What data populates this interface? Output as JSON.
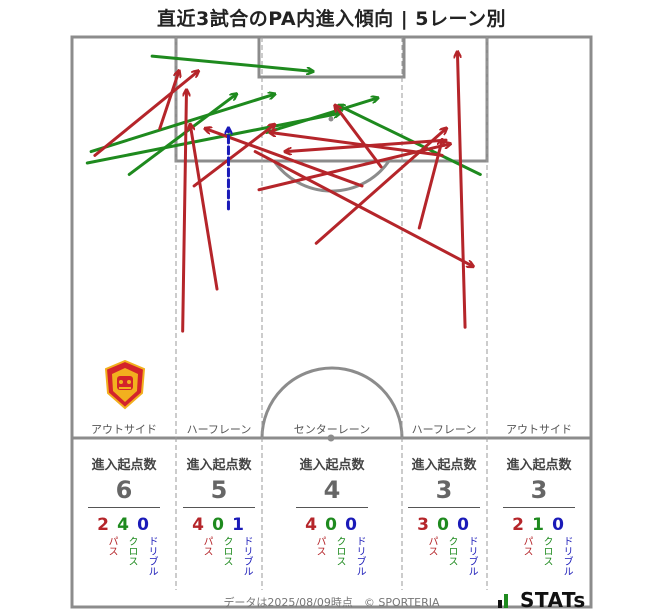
{
  "title": "直近3試合のPA内進入傾向 | 5レーン別",
  "lanes": [
    {
      "label": "アウトサイド",
      "header": "進入起点数",
      "total": "6",
      "pass": "2",
      "cross": "4",
      "dribble": "0"
    },
    {
      "label": "ハーフレーン",
      "header": "進入起点数",
      "total": "5",
      "pass": "4",
      "cross": "0",
      "dribble": "1"
    },
    {
      "label": "センターレーン",
      "header": "進入起点数",
      "total": "4",
      "pass": "4",
      "cross": "0",
      "dribble": "0"
    },
    {
      "label": "ハーフレーン",
      "header": "進入起点数",
      "total": "3",
      "pass": "3",
      "cross": "0",
      "dribble": "0"
    },
    {
      "label": "アウトサイド",
      "header": "進入起点数",
      "total": "3",
      "pass": "2",
      "cross": "1",
      "dribble": "0"
    }
  ],
  "legend": {
    "pass": "パス",
    "cross": "クロス",
    "dribble": "ドリブル"
  },
  "colors": {
    "pass": "#b5252a",
    "cross": "#1e8a1e",
    "dribble": "#1a1ab8",
    "pitch_line": "#8c8c8c"
  },
  "footer": "データは2025/08/09時点　© SPORTERIA",
  "brand": "STATs",
  "logo_icon": "club-crest-icon",
  "chart_data": {
    "type": "pitch-arrows",
    "note_units": "pitch coordinates: x 0-68 across width (left to right), y 0-52.5 from goal line downward",
    "arrows": [
      {
        "kind": "cross",
        "from": [
          10.5,
          2.5
        ],
        "to": [
          31.5,
          4.5
        ]
      },
      {
        "kind": "cross",
        "from": [
          2.5,
          15.0
        ],
        "to": [
          26.5,
          7.5
        ]
      },
      {
        "kind": "cross",
        "from": [
          2.0,
          16.5
        ],
        "to": [
          35.0,
          10.0
        ]
      },
      {
        "kind": "cross",
        "from": [
          7.5,
          18.0
        ],
        "to": [
          21.5,
          7.5
        ]
      },
      {
        "kind": "cross",
        "from": [
          53.5,
          18.0
        ],
        "to": [
          35.0,
          9.0
        ]
      },
      {
        "kind": "cross",
        "from": [
          25.5,
          12.5
        ],
        "to": [
          40.0,
          8.0
        ]
      },
      {
        "kind": "pass",
        "from": [
          3.0,
          15.5
        ],
        "to": [
          16.5,
          4.5
        ]
      },
      {
        "kind": "pass",
        "from": [
          11.5,
          12.0
        ],
        "to": [
          14.0,
          4.5
        ]
      },
      {
        "kind": "pass",
        "from": [
          14.5,
          38.5
        ],
        "to": [
          15.0,
          7.0
        ]
      },
      {
        "kind": "pass",
        "from": [
          19.0,
          33.0
        ],
        "to": [
          15.5,
          11.5
        ]
      },
      {
        "kind": "pass",
        "from": [
          16.0,
          19.5
        ],
        "to": [
          26.5,
          11.5
        ]
      },
      {
        "kind": "pass",
        "from": [
          48.5,
          15.5
        ],
        "to": [
          26.0,
          12.5
        ]
      },
      {
        "kind": "pass",
        "from": [
          49.0,
          13.5
        ],
        "to": [
          28.0,
          15.0
        ]
      },
      {
        "kind": "pass",
        "from": [
          38.0,
          19.5
        ],
        "to": [
          17.5,
          12.0
        ]
      },
      {
        "kind": "pass",
        "from": [
          24.0,
          15.0
        ],
        "to": [
          52.5,
          30.0
        ]
      },
      {
        "kind": "pass",
        "from": [
          32.0,
          27.0
        ],
        "to": [
          49.0,
          12.0
        ]
      },
      {
        "kind": "pass",
        "from": [
          24.5,
          20.0
        ],
        "to": [
          49.5,
          14.0
        ]
      },
      {
        "kind": "pass",
        "from": [
          45.5,
          25.0
        ],
        "to": [
          48.5,
          13.5
        ]
      },
      {
        "kind": "pass",
        "from": [
          51.5,
          38.0
        ],
        "to": [
          50.5,
          2.0
        ]
      },
      {
        "kind": "pass",
        "from": [
          40.5,
          17.0
        ],
        "to": [
          34.5,
          9.0
        ]
      },
      {
        "kind": "dribble",
        "from": [
          20.5,
          22.5
        ],
        "to": [
          20.5,
          12.0
        ]
      }
    ]
  }
}
